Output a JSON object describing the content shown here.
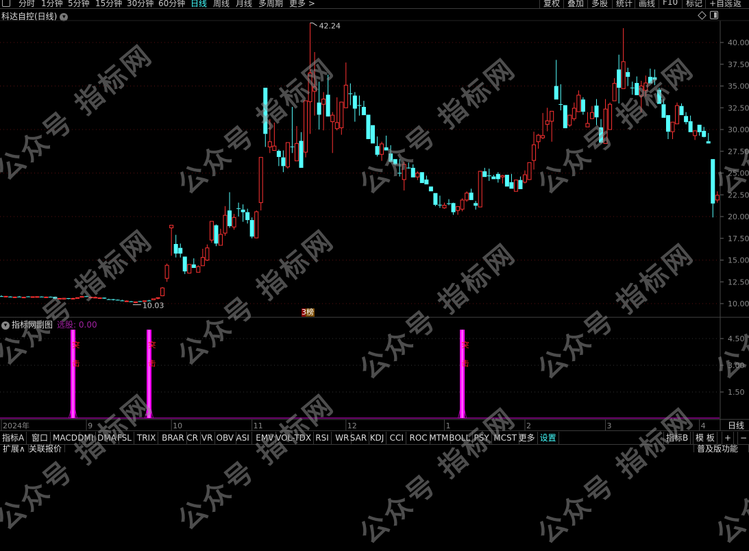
{
  "toolbar": {
    "periods": [
      "分时",
      "1分钟",
      "5分钟",
      "15分钟",
      "30分钟",
      "60分钟",
      "日线",
      "周线",
      "月线",
      "多周期",
      "更多 >"
    ],
    "active_period": "日线",
    "right_items": [
      "复权",
      "叠加",
      "多股",
      "统计",
      "画线",
      "F10",
      "标记",
      "+自选",
      "返回"
    ]
  },
  "chart": {
    "title": "科达自控(日线)",
    "high_label": "42.24",
    "low_label": "10.03",
    "badge": "榜",
    "colors": {
      "up": "#ff3232",
      "down": "#54ffff",
      "grid": "#5a1010"
    },
    "price_ticks": [
      "40.00",
      "37.50",
      "35.00",
      "32.50",
      "30.00",
      "27.50",
      "25.00",
      "22.50",
      "20.00",
      "17.50",
      "15.00",
      "12.50",
      "10.00"
    ],
    "candles_ohlc": [
      [
        10.85,
        10.95,
        10.8,
        10.82
      ],
      [
        10.82,
        10.86,
        10.8,
        10.84
      ],
      [
        10.8,
        10.85,
        10.72,
        10.74
      ],
      [
        10.72,
        10.78,
        10.7,
        10.76
      ],
      [
        10.8,
        10.88,
        10.75,
        10.78
      ],
      [
        10.72,
        10.76,
        10.66,
        10.74
      ],
      [
        10.82,
        10.85,
        10.78,
        10.8
      ],
      [
        10.74,
        10.8,
        10.72,
        10.79
      ],
      [
        10.76,
        10.82,
        10.74,
        10.8
      ],
      [
        10.8,
        10.84,
        10.76,
        10.78
      ],
      [
        10.7,
        10.8,
        10.68,
        10.76
      ],
      [
        10.78,
        10.82,
        10.74,
        10.76
      ],
      [
        10.78,
        10.8,
        10.5,
        10.55
      ],
      [
        10.56,
        10.62,
        10.54,
        10.6
      ],
      [
        10.52,
        10.66,
        10.5,
        10.62
      ],
      [
        10.62,
        10.64,
        10.5,
        10.56
      ],
      [
        10.55,
        10.66,
        10.5,
        10.6
      ],
      [
        10.64,
        10.7,
        10.62,
        10.68
      ],
      [
        10.72,
        10.86,
        10.7,
        10.82
      ],
      [
        10.84,
        10.9,
        10.78,
        10.8
      ],
      [
        10.72,
        10.76,
        10.7,
        10.74
      ],
      [
        10.72,
        10.82,
        10.7,
        10.72
      ],
      [
        10.64,
        10.68,
        10.58,
        10.66
      ],
      [
        10.68,
        10.7,
        10.54,
        10.58
      ],
      [
        10.5,
        10.56,
        10.46,
        10.48
      ],
      [
        10.5,
        10.54,
        10.36,
        10.48
      ],
      [
        10.44,
        10.48,
        10.36,
        10.42
      ],
      [
        10.36,
        10.44,
        10.28,
        10.3
      ],
      [
        10.26,
        10.38,
        10.24,
        10.3
      ],
      [
        10.26,
        10.3,
        10.2,
        10.24
      ],
      [
        10.12,
        10.22,
        10.03,
        10.2
      ],
      [
        10.28,
        10.3,
        10.2,
        10.24
      ],
      [
        10.24,
        10.34,
        10.2,
        10.32
      ],
      [
        10.35,
        10.42,
        10.3,
        10.34
      ],
      [
        10.44,
        10.58,
        10.42,
        10.56
      ],
      [
        10.6,
        10.7,
        10.5,
        10.68
      ],
      [
        10.9,
        11.9,
        10.85,
        11.8
      ],
      [
        12.9,
        14.6,
        12.5,
        14.4
      ],
      [
        18.7,
        19.0,
        15.5,
        19.0
      ],
      [
        16.85,
        17.9,
        15.3,
        15.75
      ],
      [
        16.4,
        16.9,
        15.3,
        15.75
      ],
      [
        15.4,
        15.4,
        13.4,
        13.7
      ],
      [
        13.5,
        14.5,
        13.5,
        14.5
      ],
      [
        14.5,
        15.2,
        14.1,
        14.1
      ],
      [
        13.6,
        14.4,
        13.6,
        14.25
      ],
      [
        14.35,
        16.3,
        14.35,
        15.3
      ],
      [
        15.0,
        16.8,
        14.9,
        16.4
      ],
      [
        17.3,
        19.45,
        17.0,
        19.45
      ],
      [
        19.0,
        19.1,
        16.6,
        16.9
      ],
      [
        16.7,
        18.6,
        16.7,
        17.95
      ],
      [
        18.1,
        21.2,
        17.8,
        20.15
      ],
      [
        20.7,
        22.8,
        18.7,
        18.9
      ],
      [
        18.8,
        20.3,
        18.5,
        19.9
      ],
      [
        20.96,
        21.6,
        20.0,
        20.94
      ],
      [
        20.8,
        21.4,
        19.4,
        20.5
      ],
      [
        20.5,
        20.9,
        19.2,
        19.6
      ],
      [
        19.6,
        19.9,
        17.5,
        17.7
      ],
      [
        17.55,
        20.7,
        17.5,
        20.55
      ],
      [
        21.6,
        26.8,
        20.7,
        26.8
      ],
      [
        34.8,
        34.8,
        28.0,
        29.5
      ],
      [
        28.0,
        31.2,
        27.3,
        28.6
      ],
      [
        27.6,
        30.8,
        27.6,
        28.1
      ],
      [
        27.55,
        27.7,
        25.8,
        26.85
      ],
      [
        26.8,
        27.6,
        25.1,
        25.8
      ],
      [
        25.7,
        28.5,
        25.5,
        28.5
      ],
      [
        28.05,
        32.6,
        27.3,
        28.0
      ],
      [
        26.4,
        30.4,
        26.4,
        28.4
      ],
      [
        28.7,
        29.7,
        25.6,
        25.6
      ],
      [
        27.4,
        33.3,
        26.8,
        33.3
      ],
      [
        33.2,
        42.24,
        29.5,
        36.5
      ],
      [
        34.4,
        38.9,
        31.6,
        34.9
      ],
      [
        33.1,
        35.5,
        30.0,
        31.7
      ],
      [
        32.9,
        34.3,
        29.9,
        33.5
      ],
      [
        34.0,
        36.3,
        31.5,
        31.5
      ],
      [
        30.9,
        32.0,
        27.3,
        31.65
      ],
      [
        30.1,
        33.7,
        29.9,
        30.8
      ],
      [
        30.2,
        33.2,
        29.4,
        33.15
      ],
      [
        32.5,
        37.7,
        32.5,
        35.1
      ],
      [
        34.15,
        35.3,
        32.8,
        34.1
      ],
      [
        33.9,
        34.3,
        30.9,
        32.4
      ],
      [
        32.8,
        33.9,
        31.6,
        32.75
      ],
      [
        32.6,
        33.3,
        31.65,
        31.65
      ],
      [
        31.7,
        31.7,
        28.9,
        28.9
      ],
      [
        30.5,
        30.5,
        28.4,
        28.4
      ],
      [
        28.1,
        29.2,
        26.9,
        27.1
      ],
      [
        27.15,
        28.6,
        26.4,
        28.35
      ],
      [
        27.95,
        29.3,
        27.6,
        27.6
      ],
      [
        27.25,
        28.2,
        26.2,
        26.3
      ],
      [
        26.6,
        26.6,
        25.9,
        26.0
      ],
      [
        25.02,
        26.6,
        24.6,
        25.0
      ],
      [
        24.25,
        26.3,
        23.0,
        26.0
      ],
      [
        25.62,
        26.2,
        25.5,
        25.6
      ],
      [
        25.6,
        26.0,
        24.5,
        24.5
      ],
      [
        24.55,
        25.2,
        24.2,
        25.0
      ],
      [
        25.1,
        25.1,
        23.85,
        23.85
      ],
      [
        24.25,
        24.7,
        23.7,
        23.7
      ],
      [
        23.45,
        23.45,
        22.9,
        22.9
      ],
      [
        22.7,
        22.7,
        21.2,
        21.35
      ],
      [
        21.36,
        22.4,
        21.0,
        21.34
      ],
      [
        21.0,
        21.6,
        20.9,
        21.3
      ],
      [
        21.52,
        22.0,
        21.3,
        21.48
      ],
      [
        21.55,
        21.6,
        20.2,
        20.5
      ],
      [
        20.7,
        21.15,
        20.2,
        21.15
      ],
      [
        20.85,
        22.1,
        20.6,
        21.9
      ],
      [
        21.9,
        22.9,
        21.7,
        22.7
      ],
      [
        22.75,
        23.2,
        21.9,
        21.9
      ],
      [
        21.55,
        21.8,
        20.8,
        21.25
      ],
      [
        21.1,
        25.2,
        21.1,
        25.2
      ],
      [
        25.2,
        25.6,
        24.55,
        24.55
      ],
      [
        24.72,
        25.5,
        24.1,
        24.68
      ],
      [
        24.6,
        24.8,
        24.3,
        24.3
      ],
      [
        24.9,
        25.1,
        23.9,
        24.3
      ],
      [
        24.55,
        24.8,
        23.8,
        24.7
      ],
      [
        24.8,
        24.8,
        23.45,
        23.45
      ],
      [
        23.95,
        24.9,
        23.2,
        23.2
      ],
      [
        22.9,
        24.2,
        22.9,
        24.2
      ],
      [
        24.2,
        24.6,
        23.15,
        23.15
      ],
      [
        23.95,
        25.3,
        23.8,
        24.8
      ],
      [
        24.25,
        26.2,
        24.2,
        26.2
      ],
      [
        26.45,
        29.75,
        25.4,
        28.25
      ],
      [
        28.6,
        29.5,
        27.8,
        29.35
      ],
      [
        29.05,
        31.9,
        28.9,
        29.3
      ],
      [
        30.6,
        32.5,
        29.8,
        31.0
      ],
      [
        30.95,
        32.1,
        28.6,
        32.1
      ],
      [
        35.0,
        38.0,
        33.45,
        33.45
      ],
      [
        32.92,
        35.2,
        32.2,
        32.88
      ],
      [
        32.8,
        32.8,
        30.15,
        30.15
      ],
      [
        30.5,
        31.65,
        30.3,
        31.65
      ],
      [
        31.25,
        33.1,
        31.0,
        32.45
      ],
      [
        32.05,
        34.5,
        32.05,
        33.95
      ],
      [
        33.45,
        33.7,
        31.7,
        32.05
      ],
      [
        30.3,
        32.0,
        30.3,
        30.7
      ],
      [
        31.25,
        32.7,
        31.25,
        31.95
      ],
      [
        32.75,
        33.5,
        30.5,
        31.4
      ],
      [
        30.25,
        31.2,
        28.4,
        28.5
      ],
      [
        28.4,
        33.5,
        28.4,
        32.35
      ],
      [
        30.0,
        33.1,
        30.0,
        32.9
      ],
      [
        33.3,
        35.9,
        33.3,
        35.3
      ],
      [
        36.9,
        38.6,
        33.0,
        34.8
      ],
      [
        34.7,
        41.65,
        34.7,
        37.8
      ],
      [
        36.6,
        37.1,
        35.0,
        36.05
      ],
      [
        34.82,
        35.5,
        34.0,
        34.78
      ],
      [
        35.35,
        36.1,
        33.95,
        33.95
      ],
      [
        33.85,
        35.6,
        32.0,
        35.0
      ],
      [
        34.5,
        36.2,
        33.8,
        35.35
      ],
      [
        36.05,
        37.0,
        35.3,
        35.3
      ],
      [
        36.0,
        36.9,
        35.1,
        35.7
      ],
      [
        34.55,
        34.8,
        32.95,
        32.95
      ],
      [
        32.9,
        33.5,
        31.35,
        31.35
      ],
      [
        31.65,
        31.65,
        28.9,
        29.75
      ],
      [
        29.75,
        30.85,
        28.9,
        30.85
      ],
      [
        30.65,
        33.1,
        30.65,
        32.75
      ],
      [
        32.7,
        33.0,
        31.65,
        31.65
      ],
      [
        31.55,
        32.0,
        30.6,
        30.85
      ],
      [
        30.95,
        31.6,
        29.7,
        29.7
      ],
      [
        29.3,
        29.85,
        28.8,
        29.85
      ],
      [
        30.55,
        30.55,
        29.3,
        29.7
      ],
      [
        29.85,
        30.3,
        29.1,
        29.15
      ],
      [
        28.65,
        29.6,
        28.4,
        28.4
      ],
      [
        26.6,
        26.6,
        19.9,
        21.5
      ],
      [
        21.9,
        22.9,
        21.6,
        22.45
      ]
    ],
    "date_labels": [
      {
        "label": "2024年",
        "index": 0
      },
      {
        "label": "9",
        "index": 19
      },
      {
        "label": "10",
        "index": 38
      },
      {
        "label": "11",
        "index": 56
      },
      {
        "label": "12",
        "index": 77
      },
      {
        "label": "1",
        "index": 99
      },
      {
        "label": "2",
        "index": 117
      },
      {
        "label": "3",
        "index": 135
      },
      {
        "label": "4",
        "index": 156
      }
    ]
  },
  "subchart": {
    "title": "指标网副图",
    "select_label": "选股: 0.00",
    "ticks": [
      "4.50",
      "3.00",
      "1.50"
    ],
    "signal_text": [
      "突",
      "击"
    ],
    "signals": [
      {
        "index": 16,
        "value": 5
      },
      {
        "index": 33,
        "value": 5
      },
      {
        "index": 103,
        "value": 5
      }
    ],
    "color": "#ff00ff"
  },
  "period_label": "日线",
  "indicator_tabs": [
    "指标A",
    "窗口",
    "MACD",
    "DMI",
    "DMA",
    "FSL",
    "TRIX",
    "BRAR",
    "CR",
    "VR",
    "OBV",
    "ASI",
    "EMV",
    "VOL-TDX",
    "RSI",
    "WR",
    "SAR",
    "KDJ",
    "CCI",
    "ROC",
    "MTM",
    "BOLL",
    "PSY",
    "MCST",
    "更多",
    "设置"
  ],
  "right_tabs": [
    "指标B",
    "模 板",
    "+",
    "−"
  ],
  "bottom": {
    "expand": "扩展∧",
    "related": "关联报价",
    "help": "普及版功能说明"
  },
  "watermark": "公众号 指标网"
}
